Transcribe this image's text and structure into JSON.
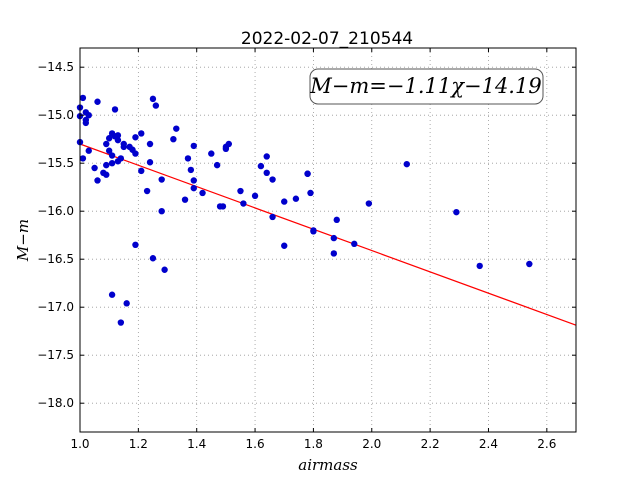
{
  "chart_data": {
    "type": "scatter",
    "title": "2022-02-07_210544",
    "xlabel": "airmass",
    "ylabel": "M−m",
    "xlim": [
      1.0,
      2.7
    ],
    "ylim": [
      -18.3,
      -14.3
    ],
    "y_inverted": true,
    "grid": true,
    "x_ticks": [
      1.0,
      1.2,
      1.4,
      1.6,
      1.8,
      2.0,
      2.2,
      2.4,
      2.6
    ],
    "x_tick_labels": [
      "1.0",
      "1.2",
      "1.4",
      "1.6",
      "1.8",
      "2.0",
      "2.2",
      "2.4",
      "2.6"
    ],
    "y_ticks": [
      -14.5,
      -15.0,
      -15.5,
      -16.0,
      -16.5,
      -17.0,
      -17.5,
      -18.0
    ],
    "y_tick_labels": [
      "−14.5",
      "−15.0",
      "−15.5",
      "−16.0",
      "−16.5",
      "−17.0",
      "−17.5",
      "−18.0"
    ],
    "annotation": "M−m=−1.11χ−14.19",
    "fit_line": {
      "slope": -1.11,
      "intercept": -14.19,
      "color": "#ff0000"
    },
    "point_color": "#0000cc",
    "points": [
      [
        1.0,
        -14.92
      ],
      [
        1.0,
        -15.01
      ],
      [
        1.01,
        -14.82
      ],
      [
        1.0,
        -15.28
      ],
      [
        1.01,
        -15.45
      ],
      [
        1.02,
        -15.05
      ],
      [
        1.02,
        -14.97
      ],
      [
        1.03,
        -15.0
      ],
      [
        1.02,
        -15.08
      ],
      [
        1.03,
        -15.37
      ],
      [
        1.05,
        -15.55
      ],
      [
        1.06,
        -15.68
      ],
      [
        1.06,
        -14.86
      ],
      [
        1.08,
        -15.6
      ],
      [
        1.09,
        -15.62
      ],
      [
        1.09,
        -15.52
      ],
      [
        1.09,
        -15.3
      ],
      [
        1.1,
        -15.37
      ],
      [
        1.1,
        -15.24
      ],
      [
        1.11,
        -15.42
      ],
      [
        1.11,
        -15.5
      ],
      [
        1.11,
        -15.19
      ],
      [
        1.12,
        -15.22
      ],
      [
        1.12,
        -14.94
      ],
      [
        1.13,
        -15.21
      ],
      [
        1.13,
        -15.26
      ],
      [
        1.13,
        -15.48
      ],
      [
        1.14,
        -15.45
      ],
      [
        1.15,
        -15.33
      ],
      [
        1.15,
        -15.3
      ],
      [
        1.17,
        -15.33
      ],
      [
        1.18,
        -15.36
      ],
      [
        1.19,
        -15.4
      ],
      [
        1.19,
        -15.23
      ],
      [
        1.21,
        -15.19
      ],
      [
        1.21,
        -15.58
      ],
      [
        1.23,
        -15.79
      ],
      [
        1.24,
        -15.49
      ],
      [
        1.24,
        -15.3
      ],
      [
        1.25,
        -14.83
      ],
      [
        1.26,
        -14.9
      ],
      [
        1.28,
        -15.67
      ],
      [
        1.28,
        -16.0
      ],
      [
        1.29,
        -16.61
      ],
      [
        1.32,
        -15.25
      ],
      [
        1.33,
        -15.14
      ],
      [
        1.36,
        -15.88
      ],
      [
        1.37,
        -15.45
      ],
      [
        1.38,
        -15.57
      ],
      [
        1.39,
        -15.32
      ],
      [
        1.39,
        -15.68
      ],
      [
        1.39,
        -15.76
      ],
      [
        1.42,
        -15.81
      ],
      [
        1.45,
        -15.4
      ],
      [
        1.47,
        -15.52
      ],
      [
        1.48,
        -15.95
      ],
      [
        1.49,
        -15.95
      ],
      [
        1.5,
        -15.33
      ],
      [
        1.5,
        -15.35
      ],
      [
        1.51,
        -15.3
      ],
      [
        1.55,
        -15.79
      ],
      [
        1.56,
        -15.92
      ],
      [
        1.6,
        -15.84
      ],
      [
        1.62,
        -15.53
      ],
      [
        1.64,
        -15.6
      ],
      [
        1.64,
        -15.43
      ],
      [
        1.66,
        -15.67
      ],
      [
        1.66,
        -16.06
      ],
      [
        1.7,
        -16.36
      ],
      [
        1.7,
        -15.9
      ],
      [
        1.74,
        -15.87
      ],
      [
        1.78,
        -15.61
      ],
      [
        1.78,
        -15.61
      ],
      [
        1.79,
        -15.81
      ],
      [
        1.8,
        -16.2
      ],
      [
        1.8,
        -16.21
      ],
      [
        1.87,
        -16.28
      ],
      [
        1.87,
        -16.44
      ],
      [
        1.88,
        -16.09
      ],
      [
        1.94,
        -16.34
      ],
      [
        1.99,
        -15.92
      ],
      [
        2.12,
        -15.51
      ],
      [
        2.29,
        -16.01
      ],
      [
        2.37,
        -16.57
      ],
      [
        2.54,
        -16.55
      ],
      [
        1.11,
        -16.87
      ],
      [
        1.14,
        -17.16
      ],
      [
        1.16,
        -16.96
      ],
      [
        1.19,
        -16.35
      ],
      [
        1.25,
        -16.49
      ]
    ]
  }
}
